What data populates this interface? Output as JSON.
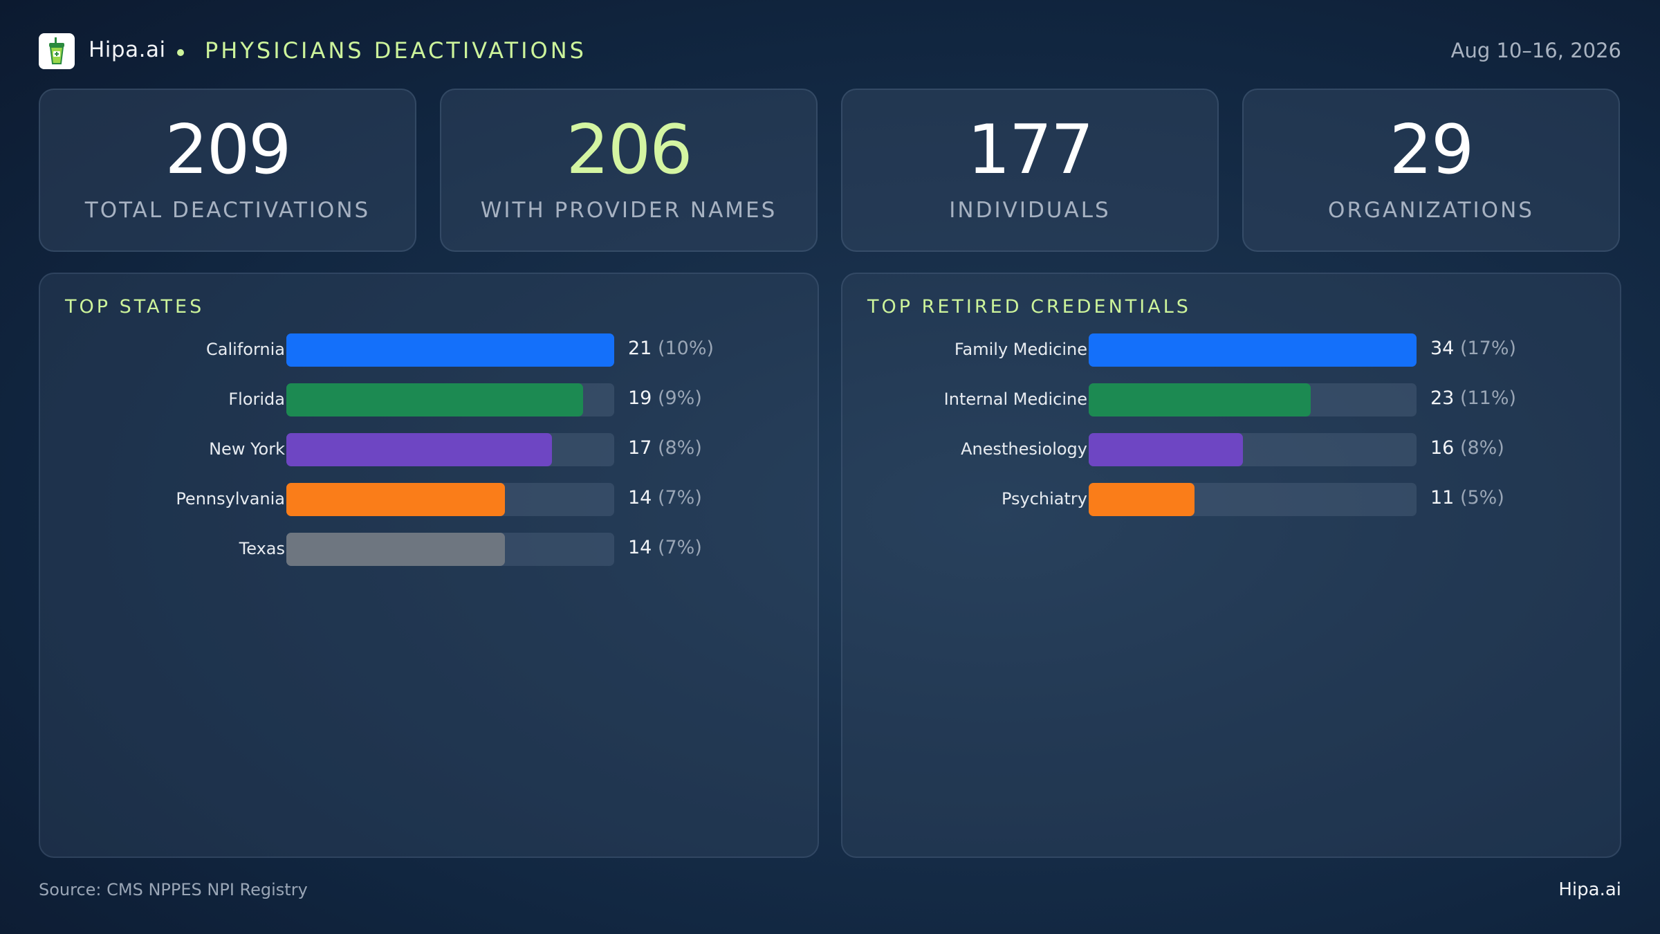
{
  "header": {
    "brand": "Hipa.ai",
    "title": "PHYSICIANS DEACTIVATIONS",
    "date": "Aug 10–16, 2026"
  },
  "stats": [
    {
      "value": "209",
      "label": "TOTAL DEACTIVATIONS"
    },
    {
      "value": "206",
      "label": "WITH PROVIDER NAMES"
    },
    {
      "value": "177",
      "label": "INDIVIDUALS"
    },
    {
      "value": "29",
      "label": "ORGANIZATIONS"
    }
  ],
  "colors": {
    "accent": "#cdf49b",
    "highlight_value": "#d4f5a2",
    "bar_blue": "#1470fa",
    "bar_green": "#1c8a52",
    "bar_purple": "#6e46c3",
    "bar_orange": "#fa7d19",
    "bar_gray": "#6e7680"
  },
  "chart_data": [
    {
      "type": "bar",
      "orientation": "horizontal",
      "title": "TOP STATES",
      "categories": [
        "California",
        "Florida",
        "New York",
        "Pennsylvania",
        "Texas"
      ],
      "values": [
        21,
        19,
        17,
        14,
        14
      ],
      "percent_labels": [
        "(10%)",
        "(9%)",
        "(8%)",
        "(7%)",
        "(7%)"
      ],
      "colors": [
        "#1470fa",
        "#1c8a52",
        "#6e46c3",
        "#fa7d19",
        "#6e7680"
      ],
      "xlim": [
        0,
        21
      ]
    },
    {
      "type": "bar",
      "orientation": "horizontal",
      "title": "TOP RETIRED CREDENTIALS",
      "categories": [
        "Family Medicine",
        "Internal Medicine",
        "Anesthesiology",
        "Psychiatry"
      ],
      "values": [
        34,
        23,
        16,
        11
      ],
      "percent_labels": [
        "(17%)",
        "(11%)",
        "(8%)",
        "(5%)"
      ],
      "colors": [
        "#1470fa",
        "#1c8a52",
        "#6e46c3",
        "#fa7d19"
      ],
      "xlim": [
        0,
        34
      ]
    }
  ],
  "footer": {
    "source": "Source: CMS NPPES NPI Registry",
    "brand": "Hipa.ai"
  }
}
